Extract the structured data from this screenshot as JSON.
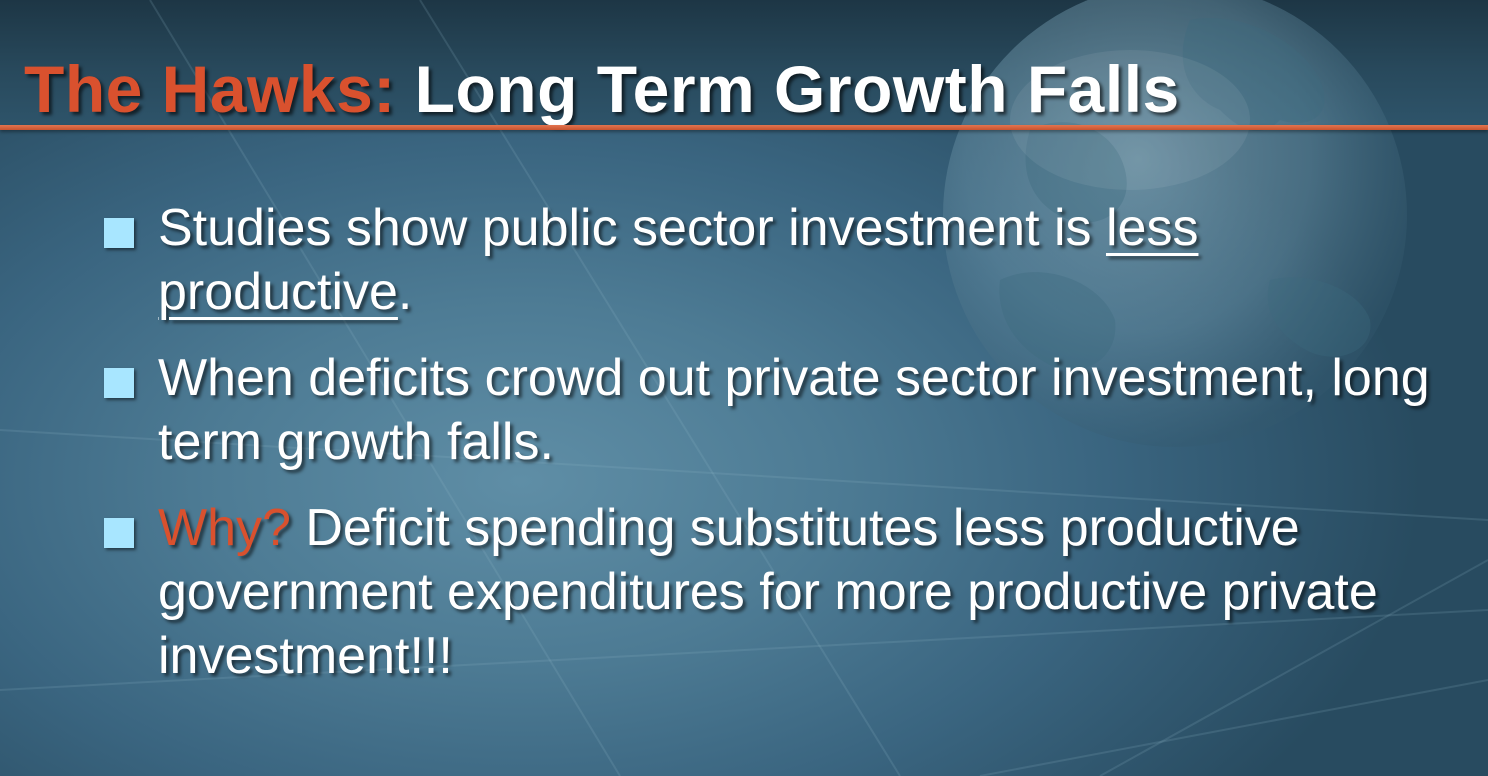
{
  "slide": {
    "title_highlight": "The Hawks:",
    "title_rest": "Long Term Growth Falls",
    "bullets": [
      {
        "text_before": "Studies show public sector investment is ",
        "underlined": "less productive",
        "text_after": "."
      },
      {
        "text": "When deficits crowd out private sector investment, long term growth falls."
      },
      {
        "highlight": "Why?",
        "text": " Deficit spending substitutes less productive government expenditures for more productive private investment!!!"
      }
    ]
  },
  "colors": {
    "title_accent": "#d9512e",
    "rule": "#d9643e",
    "bullet_square": "#a8e6ff",
    "text": "#ffffff"
  },
  "icons": {
    "background": "globe-icon",
    "bullet_marker": "square-bullet-icon"
  }
}
